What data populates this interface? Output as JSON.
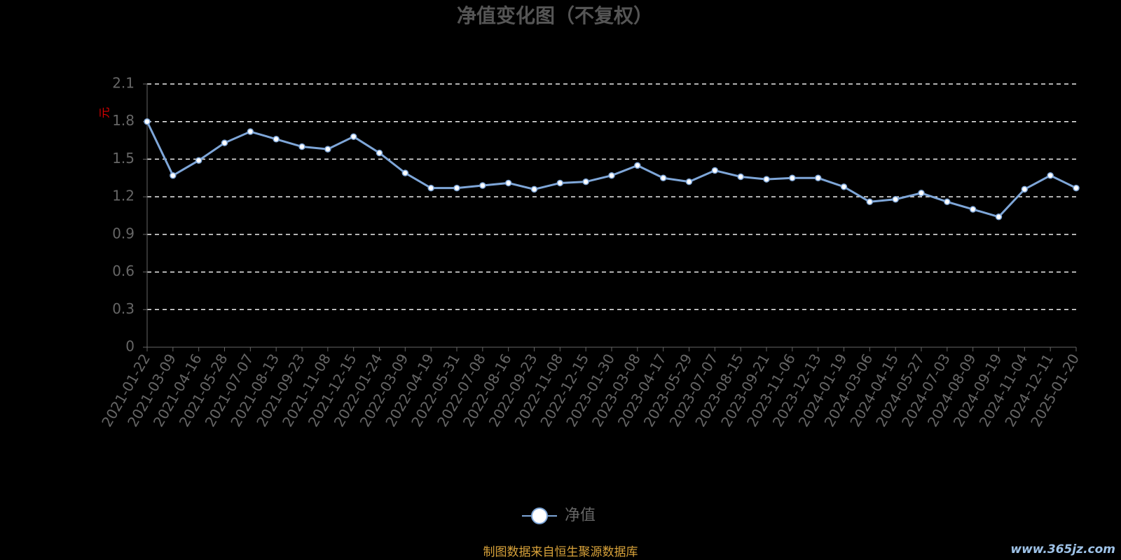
{
  "chart_data": {
    "type": "line",
    "title": "净值变化图（不复权）",
    "y_unit": "元",
    "categories": [
      "2021-01-22",
      "2021-03-09",
      "2021-04-16",
      "2021-05-28",
      "2021-07-07",
      "2021-08-13",
      "2021-09-23",
      "2021-11-08",
      "2021-12-15",
      "2022-01-24",
      "2022-03-09",
      "2022-04-19",
      "2022-05-31",
      "2022-07-08",
      "2022-08-16",
      "2022-09-23",
      "2022-11-08",
      "2022-12-15",
      "2023-01-30",
      "2023-03-08",
      "2023-04-17",
      "2023-05-29",
      "2023-07-07",
      "2023-08-15",
      "2023-09-21",
      "2023-11-06",
      "2023-12-13",
      "2024-01-19",
      "2024-03-06",
      "2024-04-15",
      "2024-05-27",
      "2024-07-03",
      "2024-08-09",
      "2024-09-19",
      "2024-11-04",
      "2024-12-11",
      "2025-01-20"
    ],
    "series": [
      {
        "name": "净值",
        "color": "#7ea6d8",
        "values": [
          1.8,
          1.37,
          1.49,
          1.63,
          1.72,
          1.66,
          1.6,
          1.58,
          1.68,
          1.55,
          1.39,
          1.27,
          1.27,
          1.29,
          1.31,
          1.26,
          1.31,
          1.32,
          1.37,
          1.45,
          1.35,
          1.32,
          1.41,
          1.36,
          1.34,
          1.35,
          1.35,
          1.28,
          1.16,
          1.18,
          1.23,
          1.16,
          1.1,
          1.04,
          1.26,
          1.37,
          1.27
        ]
      }
    ],
    "ylim": [
      0,
      2.1
    ],
    "yticks": [
      0,
      0.3,
      0.6,
      0.9,
      1.2,
      1.5,
      1.8,
      2.1
    ],
    "grid": true,
    "source": "制图数据来自恒生聚源数据库",
    "watermark": "www.365jz.com"
  }
}
